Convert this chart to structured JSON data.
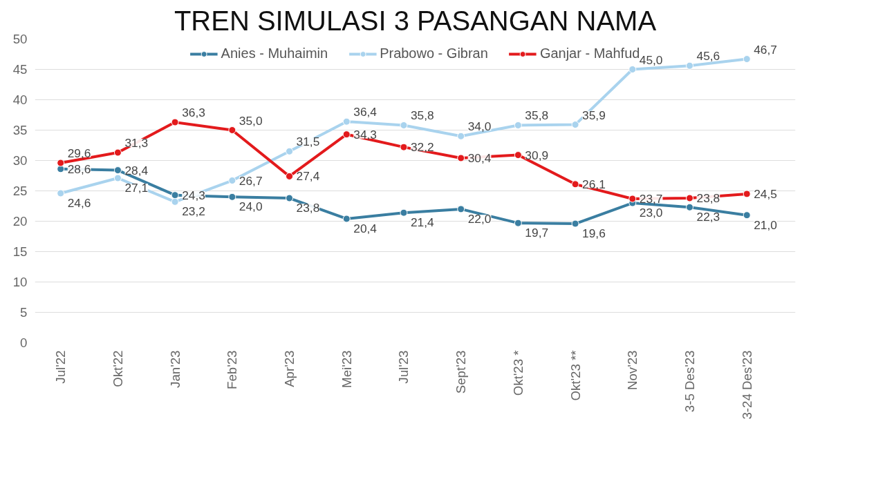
{
  "chart_data": {
    "type": "line",
    "title": "TREN SIMULASI 3 PASANGAN NAMA",
    "categories": [
      "Jul'22",
      "Okt'22",
      "Jan'23",
      "Feb'23",
      "Apr'23",
      "Mei'23",
      "Jul'23",
      "Sept'23",
      "Okt'23 *",
      "Okt'23 **",
      "Nov'23",
      "3-5 Des'23",
      "3-24 Des'23"
    ],
    "series": [
      {
        "name": "Anies - Muhaimin",
        "color": "#3a7ea1",
        "values": [
          28.6,
          28.4,
          24.3,
          24.0,
          23.8,
          20.4,
          21.4,
          22.0,
          19.7,
          19.6,
          23.0,
          22.3,
          21.0
        ],
        "value_labels": [
          "28,6",
          "28,4",
          "24,3",
          "24,0",
          "23,8",
          "20,4",
          "21,4",
          "22,0",
          "19,7",
          "19,6",
          "23,0",
          "22,3",
          "21,0"
        ]
      },
      {
        "name": "Prabowo - Gibran",
        "color": "#a9d3ee",
        "values": [
          24.6,
          27.1,
          23.2,
          26.7,
          31.5,
          36.4,
          35.8,
          34.0,
          35.8,
          35.9,
          45.0,
          45.6,
          46.7
        ],
        "value_labels": [
          "24,6",
          "27,1",
          "23,2",
          "26,7",
          "31,5",
          "36,4",
          "35,8",
          "34,0",
          "35,8",
          "35,9",
          "45,0",
          "45,6",
          "46,7"
        ]
      },
      {
        "name": "Ganjar - Mahfud",
        "color": "#e31a1c",
        "values": [
          29.6,
          31.3,
          36.3,
          35.0,
          27.4,
          34.3,
          32.2,
          30.4,
          30.9,
          26.1,
          23.7,
          23.8,
          24.5
        ],
        "value_labels": [
          "29,6",
          "31,3",
          "36,3",
          "35,0",
          "27,4",
          "34,3",
          "32,2",
          "30,4",
          "30,9",
          "26,1",
          "23,7",
          "23,8",
          "24,5"
        ]
      }
    ],
    "ylim": [
      0,
      50
    ],
    "yticks": [
      0,
      5,
      10,
      15,
      20,
      25,
      30,
      35,
      40,
      45,
      50
    ],
    "grid": "y",
    "legend": "top",
    "marker": "circle",
    "line_style": "solid"
  }
}
